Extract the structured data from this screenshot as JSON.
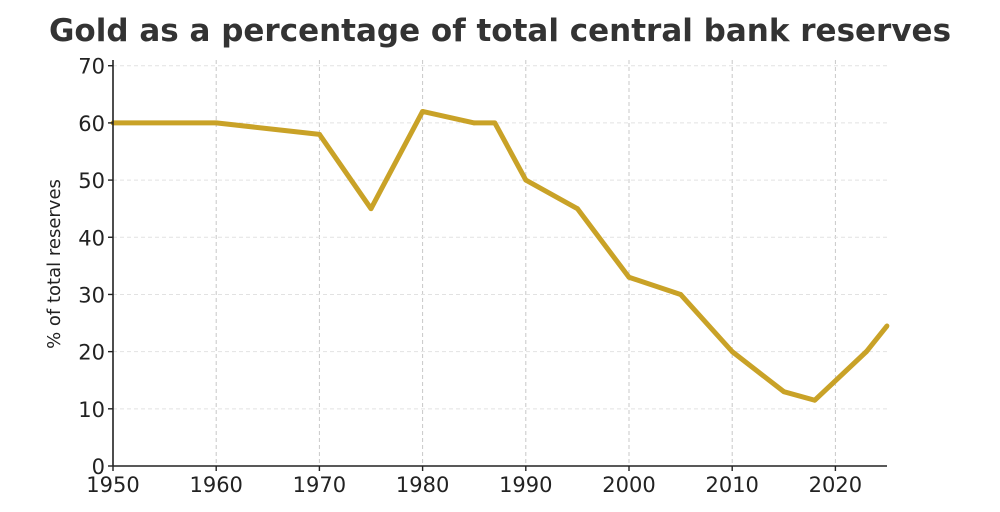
{
  "chart_data": {
    "type": "line",
    "title": "Gold as a percentage of total central bank reserves",
    "xlabel": "",
    "ylabel": "% of total reserves",
    "xlim": [
      1950,
      2025
    ],
    "ylim": [
      0,
      71
    ],
    "x_ticks": [
      1950,
      1960,
      1970,
      1980,
      1990,
      2000,
      2010,
      2020
    ],
    "y_ticks": [
      0,
      10,
      20,
      30,
      40,
      50,
      60,
      70
    ],
    "grid": true,
    "legend": "none",
    "series": [
      {
        "color": "#C9A227",
        "x": [
          1950,
          1960,
          1970,
          1975,
          1980,
          1985,
          1987,
          1990,
          1995,
          2000,
          2005,
          2010,
          2015,
          2018,
          2023,
          2025
        ],
        "y": [
          60,
          60,
          58,
          45,
          62,
          60,
          60,
          50,
          45,
          33,
          30,
          20,
          13,
          11.5,
          20,
          24.5
        ]
      }
    ]
  }
}
